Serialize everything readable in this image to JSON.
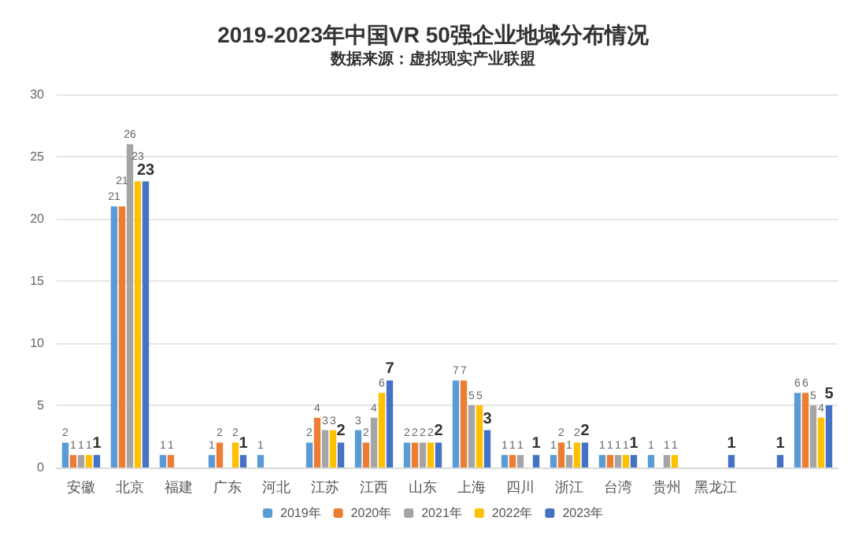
{
  "chart_data": {
    "type": "bar",
    "title": "2019-2023年中国VR 50强企业地域分布情况",
    "subtitle": "数据来源：虚拟现实产业联盟",
    "categories": [
      "安徽",
      "北京",
      "福建",
      "广东",
      "河北",
      "江苏",
      "江西",
      "山东",
      "上海",
      "四川",
      "浙江",
      "台湾",
      "贵州",
      "黑龙江",
      null,
      null
    ],
    "series": [
      {
        "name": "2019年",
        "color": "#5b9bd5",
        "values": [
          2,
          21,
          1,
          1,
          1,
          2,
          3,
          2,
          7,
          1,
          1,
          1,
          1,
          null,
          null,
          6
        ]
      },
      {
        "name": "2020年",
        "color": "#ed7d31",
        "values": [
          1,
          21,
          1,
          2,
          null,
          4,
          2,
          2,
          7,
          1,
          2,
          1,
          null,
          null,
          null,
          6
        ]
      },
      {
        "name": "2021年",
        "color": "#a5a5a5",
        "values": [
          1,
          26,
          null,
          null,
          null,
          3,
          4,
          2,
          5,
          1,
          1,
          1,
          1,
          null,
          null,
          5
        ]
      },
      {
        "name": "2022年",
        "color": "#ffc000",
        "values": [
          1,
          23,
          null,
          2,
          null,
          3,
          6,
          2,
          5,
          null,
          2,
          1,
          1,
          null,
          null,
          4
        ]
      },
      {
        "name": "2023年",
        "color": "#4472c4",
        "values": [
          1,
          23,
          null,
          1,
          null,
          2,
          7,
          2,
          3,
          1,
          2,
          1,
          null,
          1,
          1,
          5
        ]
      }
    ],
    "ylim": [
      0,
      30
    ],
    "yticks": [
      0,
      5,
      10,
      15,
      20,
      25,
      30
    ],
    "grid": "y",
    "legend": "bottom",
    "data_labels": true
  }
}
